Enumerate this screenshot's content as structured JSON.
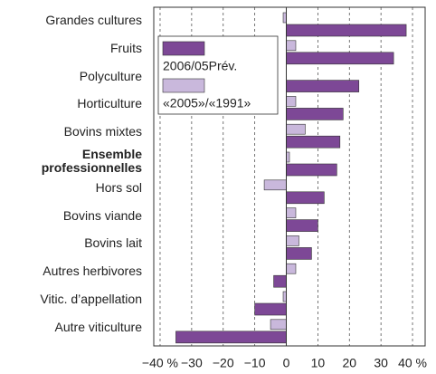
{
  "chart_data": {
    "type": "hbar",
    "categories": [
      "Grandes cultures",
      "Fruits",
      "Polyculture",
      "Horticulture",
      "Bovins mixtes",
      "Ensemble professionnelles",
      "Hors sol",
      "Bovins viande",
      "Bovins lait",
      "Autres herbivores",
      "Vitic. d’appellation",
      "Autre viticulture"
    ],
    "bold_categories": [
      5
    ],
    "series": [
      {
        "name": "«2005»/«1991»",
        "color": "#c9b8dc",
        "values": [
          -1,
          3,
          0,
          3,
          6,
          1,
          -7,
          3,
          4,
          3,
          -1,
          -5
        ]
      },
      {
        "name": "2006/05Prév.",
        "color": "#7d4896",
        "values": [
          38,
          34,
          23,
          18,
          17,
          16,
          12,
          10,
          8,
          -4,
          -10,
          -35
        ]
      }
    ],
    "legend_order": [
      1,
      0
    ],
    "xlim": [
      -42,
      44
    ],
    "xticks": [
      {
        "value": -40,
        "label": "−40 %"
      },
      {
        "value": -30,
        "label": "−30"
      },
      {
        "value": -20,
        "label": "−20"
      },
      {
        "value": -10,
        "label": "−10"
      },
      0,
      10,
      20,
      30,
      {
        "value": 40,
        "label": "40 %"
      }
    ],
    "grid": true
  }
}
